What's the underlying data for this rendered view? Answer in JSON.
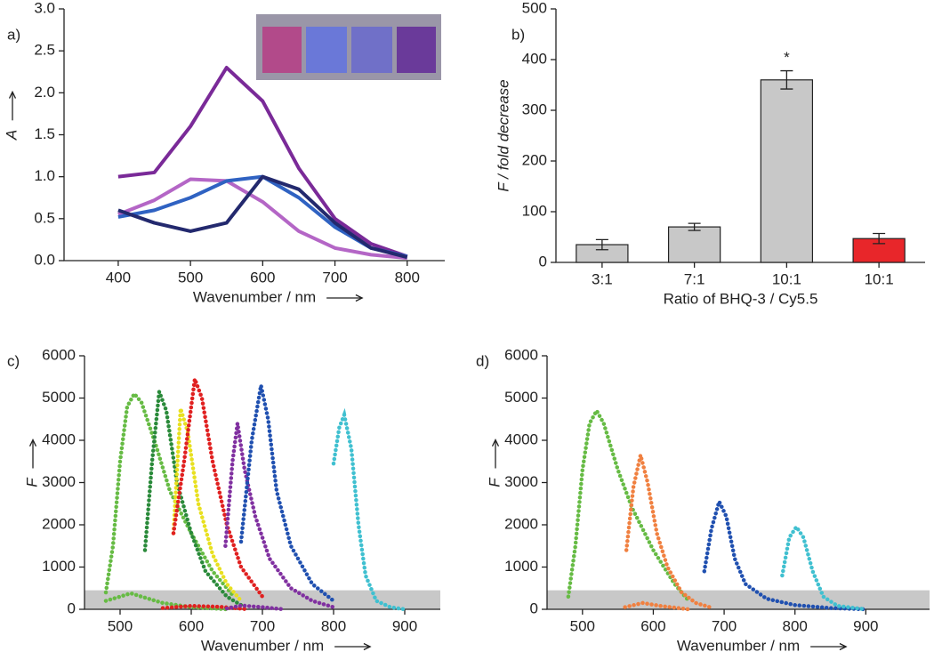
{
  "chart_data": [
    {
      "type": "line",
      "label": "a)",
      "xlabel": "Wavenumber / nm",
      "ylabel": "A",
      "x": [
        400,
        450,
        500,
        550,
        600,
        650,
        700,
        750,
        800
      ],
      "series": [
        {
          "color": "#7a2a98",
          "values": [
            1.0,
            1.05,
            1.6,
            2.3,
            1.9,
            1.1,
            0.5,
            0.2,
            0.05
          ]
        },
        {
          "color": "#b466c6",
          "values": [
            0.55,
            0.72,
            0.97,
            0.95,
            0.7,
            0.35,
            0.15,
            0.07,
            0.03
          ]
        },
        {
          "color": "#2f62c2",
          "values": [
            0.52,
            0.6,
            0.75,
            0.95,
            1.0,
            0.75,
            0.4,
            0.15,
            0.05
          ]
        },
        {
          "color": "#23296e",
          "values": [
            0.6,
            0.45,
            0.35,
            0.45,
            1.0,
            0.85,
            0.45,
            0.15,
            0.04
          ]
        }
      ],
      "xlim": [
        325,
        852
      ],
      "xticks": [
        400,
        500,
        600,
        700,
        800
      ],
      "ylim": [
        0,
        3
      ],
      "yticks": [
        {
          "value": 0,
          "label": "0.0"
        },
        0.5,
        {
          "value": 1,
          "label": "1.0"
        },
        1.5,
        {
          "value": 2,
          "label": "2.0"
        },
        2.5,
        {
          "value": 3,
          "label": "3.0"
        }
      ]
    },
    {
      "type": "bar",
      "label": "b)",
      "xlabel": "Ratio of BHQ-3 / Cy5.5",
      "ylabel": "F / fold decrease",
      "categories": [
        "3:1",
        "7:1",
        "10:1",
        "10:1"
      ],
      "values": [
        35,
        70,
        360,
        47
      ],
      "errors": [
        10,
        7,
        18,
        10
      ],
      "colors": [
        "#c8c8c8",
        "#c8c8c8",
        "#c8c8c8",
        "#e8262a"
      ],
      "annotation": "*",
      "ylim": [
        0,
        500
      ],
      "yticks": [
        0,
        100,
        200,
        300,
        400,
        500
      ]
    },
    {
      "type": "scatter",
      "label": "c)",
      "xlabel": "Wavenumber / nm",
      "ylabel": "F",
      "band": [
        0,
        450
      ],
      "series": [
        {
          "color": "#66bb44",
          "x": [
            480,
            490,
            500,
            510,
            520,
            530,
            550,
            570,
            600,
            630,
            660
          ],
          "values": [
            400,
            1500,
            3500,
            4800,
            5100,
            4900,
            3900,
            2800,
            1800,
            900,
            300
          ]
        },
        {
          "color": "#2a8a3a",
          "x": [
            535,
            545,
            555,
            565,
            580,
            600,
            620,
            650,
            670
          ],
          "values": [
            1400,
            3500,
            5150,
            4700,
            3000,
            1800,
            900,
            300,
            100
          ]
        },
        {
          "color": "#e8e020",
          "x": [
            575,
            585,
            595,
            610,
            630,
            650,
            670
          ],
          "values": [
            1800,
            4750,
            4200,
            2500,
            1300,
            600,
            200
          ]
        },
        {
          "color": "#e02020",
          "x": [
            575,
            590,
            605,
            615,
            630,
            650,
            670,
            700
          ],
          "values": [
            1800,
            3500,
            5450,
            5000,
            3500,
            2000,
            1000,
            300
          ]
        },
        {
          "color": "#8030a0",
          "x": [
            648,
            658,
            665,
            675,
            690,
            710,
            740,
            770,
            800
          ],
          "values": [
            1500,
            3500,
            4400,
            3300,
            2200,
            1200,
            500,
            200,
            50
          ]
        },
        {
          "color": "#2050b0",
          "x": [
            670,
            685,
            698,
            708,
            720,
            740,
            770,
            800
          ],
          "values": [
            1600,
            4000,
            5300,
            4500,
            2800,
            1500,
            600,
            200
          ]
        },
        {
          "color": "#40c0d0",
          "x": [
            800,
            808,
            815,
            825,
            835,
            845,
            860,
            880,
            900
          ],
          "values": [
            3450,
            4300,
            4600,
            3800,
            2000,
            800,
            200,
            50,
            0
          ]
        },
        {
          "color": "#66bb44",
          "x": [
            480,
            500,
            515,
            530,
            560,
            600,
            650
          ],
          "values": [
            200,
            300,
            380,
            300,
            150,
            50,
            0
          ]
        },
        {
          "color": "#e02020",
          "x": [
            560,
            600,
            640,
            680
          ],
          "values": [
            30,
            80,
            60,
            0
          ]
        },
        {
          "color": "#8030a0",
          "x": [
            650,
            670,
            700,
            730
          ],
          "values": [
            20,
            90,
            50,
            0
          ]
        }
      ],
      "xlim": [
        450,
        950
      ],
      "xticks": [
        500,
        600,
        700,
        800,
        900
      ],
      "ylim": [
        0,
        6000
      ],
      "yticks": [
        0,
        1000,
        2000,
        3000,
        4000,
        5000,
        6000
      ]
    },
    {
      "type": "scatter",
      "label": "d)",
      "xlabel": "Wavenumber / nm",
      "ylabel": "F",
      "band": [
        0,
        450
      ],
      "series": [
        {
          "color": "#66bb44",
          "x": [
            480,
            490,
            500,
            510,
            520,
            530,
            550,
            570,
            600,
            630,
            650
          ],
          "values": [
            300,
            1500,
            3300,
            4400,
            4700,
            4400,
            3300,
            2400,
            1400,
            600,
            200
          ]
        },
        {
          "color": "#f08040",
          "x": [
            562,
            572,
            582,
            592,
            605,
            620,
            640,
            660,
            680
          ],
          "values": [
            1400,
            2900,
            3650,
            3000,
            1800,
            1000,
            400,
            150,
            50
          ]
        },
        {
          "color": "#2050b0",
          "x": [
            672,
            682,
            693,
            703,
            715,
            730,
            760,
            800,
            850,
            900
          ],
          "values": [
            900,
            1900,
            2550,
            2200,
            1200,
            600,
            250,
            100,
            30,
            0
          ]
        },
        {
          "color": "#40c0d0",
          "x": [
            782,
            792,
            802,
            812,
            825,
            840,
            860,
            900
          ],
          "values": [
            800,
            1700,
            1950,
            1700,
            900,
            300,
            80,
            0
          ]
        },
        {
          "color": "#f08040",
          "x": [
            560,
            585,
            610,
            650
          ],
          "values": [
            50,
            150,
            80,
            0
          ]
        }
      ],
      "xlim": [
        450,
        990
      ],
      "xticks": [
        500,
        600,
        700,
        800,
        900
      ],
      "ylim": [
        0,
        6000
      ],
      "yticks": [
        0,
        1000,
        2000,
        3000,
        4000,
        5000,
        6000
      ]
    }
  ]
}
